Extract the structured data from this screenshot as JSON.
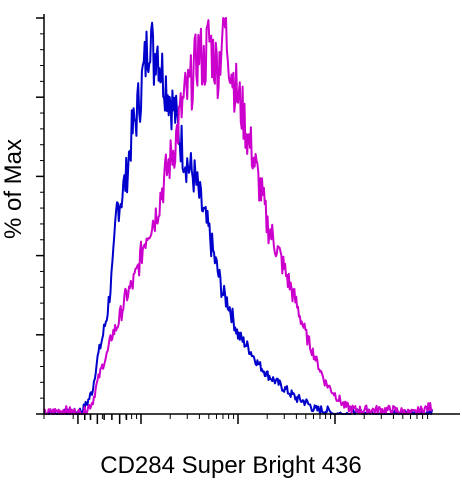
{
  "chart_data": {
    "type": "line",
    "title": "",
    "xlabel": "CD284 Super Bright 436",
    "ylabel": "% of Max",
    "x_scale": "biexponential",
    "x_decades": 4,
    "ylim": [
      0,
      100
    ],
    "y_major_ticks": [
      0,
      20,
      40,
      60,
      80,
      100
    ],
    "grid": false,
    "legend": "none",
    "series": [
      {
        "color": "#0000CC",
        "points": [
          [
            0.0,
            0
          ],
          [
            0.3,
            0
          ],
          [
            0.4,
            1
          ],
          [
            0.45,
            3
          ],
          [
            0.5,
            6
          ],
          [
            0.55,
            14
          ],
          [
            0.6,
            19
          ],
          [
            0.65,
            25
          ],
          [
            0.7,
            35
          ],
          [
            0.72,
            40
          ],
          [
            0.75,
            52
          ],
          [
            0.8,
            55
          ],
          [
            0.85,
            60
          ],
          [
            0.9,
            70
          ],
          [
            0.95,
            75
          ],
          [
            1.0,
            82
          ],
          [
            1.05,
            90
          ],
          [
            1.1,
            98
          ],
          [
            1.13,
            88
          ],
          [
            1.16,
            95
          ],
          [
            1.2,
            88
          ],
          [
            1.25,
            84
          ],
          [
            1.3,
            80
          ],
          [
            1.35,
            76
          ],
          [
            1.4,
            70
          ],
          [
            1.45,
            65
          ],
          [
            1.5,
            62
          ],
          [
            1.55,
            60
          ],
          [
            1.6,
            55
          ],
          [
            1.65,
            50
          ],
          [
            1.7,
            46
          ],
          [
            1.75,
            40
          ],
          [
            1.8,
            35
          ],
          [
            1.85,
            30
          ],
          [
            1.9,
            28
          ],
          [
            1.95,
            24
          ],
          [
            2.0,
            20
          ],
          [
            2.1,
            17
          ],
          [
            2.2,
            13
          ],
          [
            2.3,
            10
          ],
          [
            2.4,
            8
          ],
          [
            2.5,
            6
          ],
          [
            2.6,
            4
          ],
          [
            2.7,
            3
          ],
          [
            2.8,
            1
          ],
          [
            2.9,
            1
          ],
          [
            3.0,
            0
          ],
          [
            4.0,
            0
          ]
        ]
      },
      {
        "color": "#CC00CC",
        "points": [
          [
            0.0,
            0
          ],
          [
            0.2,
            1
          ],
          [
            0.4,
            0
          ],
          [
            0.5,
            3
          ],
          [
            0.55,
            8
          ],
          [
            0.6,
            12
          ],
          [
            0.65,
            15
          ],
          [
            0.7,
            20
          ],
          [
            0.75,
            22
          ],
          [
            0.8,
            26
          ],
          [
            0.85,
            30
          ],
          [
            0.9,
            32
          ],
          [
            0.95,
            35
          ],
          [
            1.0,
            40
          ],
          [
            1.05,
            45
          ],
          [
            1.1,
            48
          ],
          [
            1.15,
            50
          ],
          [
            1.2,
            55
          ],
          [
            1.25,
            60
          ],
          [
            1.3,
            64
          ],
          [
            1.35,
            68
          ],
          [
            1.4,
            75
          ],
          [
            1.45,
            80
          ],
          [
            1.5,
            82
          ],
          [
            1.55,
            87
          ],
          [
            1.6,
            92
          ],
          [
            1.65,
            88
          ],
          [
            1.7,
            95
          ],
          [
            1.75,
            90
          ],
          [
            1.8,
            87
          ],
          [
            1.85,
            100
          ],
          [
            1.9,
            92
          ],
          [
            1.95,
            85
          ],
          [
            2.0,
            80
          ],
          [
            2.05,
            76
          ],
          [
            2.1,
            70
          ],
          [
            2.15,
            66
          ],
          [
            2.2,
            60
          ],
          [
            2.25,
            55
          ],
          [
            2.3,
            48
          ],
          [
            2.4,
            42
          ],
          [
            2.5,
            35
          ],
          [
            2.6,
            28
          ],
          [
            2.7,
            20
          ],
          [
            2.8,
            14
          ],
          [
            2.9,
            8
          ],
          [
            3.0,
            5
          ],
          [
            3.1,
            2
          ],
          [
            3.2,
            1
          ],
          [
            3.4,
            1
          ],
          [
            3.6,
            1
          ],
          [
            3.8,
            0
          ],
          [
            4.0,
            2
          ]
        ]
      }
    ]
  }
}
